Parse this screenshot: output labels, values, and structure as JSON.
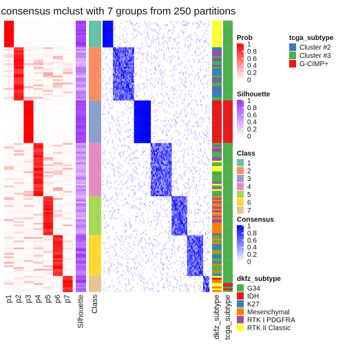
{
  "chart_data": {
    "type": "heatmap",
    "title": "consensus mclust with 7 groups from 250 partitions",
    "groups": [
      1,
      2,
      3,
      4,
      5,
      6,
      7
    ],
    "group_sizes": [
      15,
      30,
      24,
      30,
      22,
      23,
      9
    ],
    "prob_columns": [
      "p1",
      "p2",
      "p3",
      "p4",
      "p5",
      "p6",
      "p7"
    ],
    "annotation_columns": [
      "Silhouette",
      "Class"
    ],
    "right_annotation_columns": [
      "dkfz_subtype",
      "tcga_subtype"
    ],
    "legends": {
      "prob": {
        "title": "Prob",
        "ticks": [
          "1",
          "0.8",
          "0.6",
          "0.4",
          "0.2",
          "0"
        ]
      },
      "silhouette": {
        "title": "Silhouette",
        "ticks": [
          "1",
          "0.8",
          "0.6",
          "0.4",
          "0.2",
          "0"
        ]
      },
      "class": {
        "title": "Class",
        "labels": [
          "1",
          "2",
          "3",
          "4",
          "5",
          "6",
          "7"
        ],
        "colors": [
          "#66c2a5",
          "#fc8d62",
          "#8da0cb",
          "#e78ac3",
          "#a6d854",
          "#ffd92f",
          "#e5c494"
        ]
      },
      "consensus": {
        "title": "Consensus",
        "ticks": [
          "1",
          "0.8",
          "0.6",
          "0.4",
          "0.2",
          "0"
        ]
      },
      "dkfz_subtype": {
        "title": "dkfz_subtype",
        "labels": [
          "G34",
          "IDH",
          "K27",
          "Mesenchymal",
          "RTK I PDGFRA",
          "RTK II Classic"
        ],
        "colors": [
          "#4daf4a",
          "#e41a1c",
          "#377eb8",
          "#ff7f00",
          "#984ea3",
          "#ffff33"
        ]
      },
      "tcga_subtype": {
        "title": "tcga_subtype",
        "labels": [
          "Cluster #2",
          "Cluster #3",
          "G-CIMP+"
        ],
        "colors": [
          "#377eb8",
          "#4daf4a",
          "#e41a1c"
        ]
      }
    },
    "colors": {
      "prob": "#ff0000",
      "silhouette": "#9b30ff",
      "consensus": "#0000ff"
    }
  }
}
